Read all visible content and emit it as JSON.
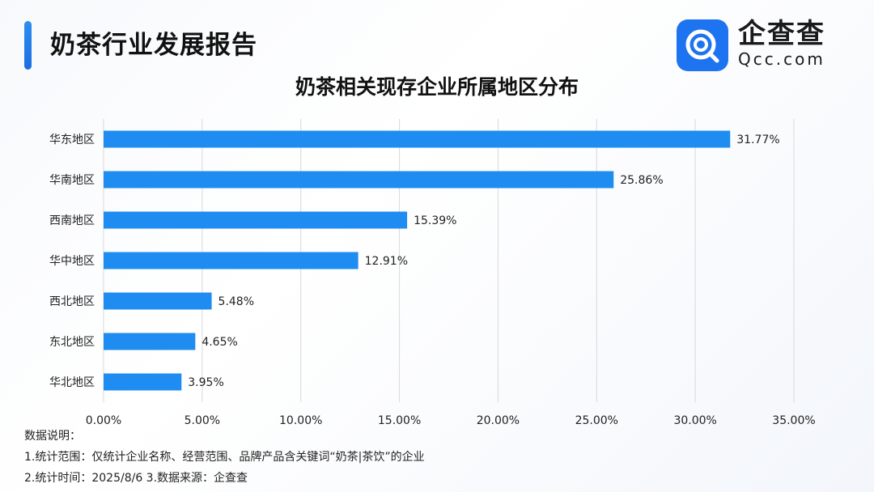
{
  "header": {
    "title": "奶茶行业发展报告",
    "brand_name": "企查查",
    "brand_sub": "Qcc.com",
    "brand_color": "#1e74f0"
  },
  "chart_data": {
    "type": "bar",
    "orientation": "horizontal",
    "title": "奶茶相关现存企业所属地区分布",
    "categories": [
      "华东地区",
      "华南地区",
      "西南地区",
      "华中地区",
      "西北地区",
      "东北地区",
      "华北地区"
    ],
    "values": [
      31.77,
      25.86,
      15.39,
      12.91,
      5.48,
      4.65,
      3.95
    ],
    "value_labels": [
      "31.77%",
      "25.86%",
      "15.39%",
      "12.91%",
      "5.48%",
      "4.65%",
      "3.95%"
    ],
    "xlim": [
      0,
      35
    ],
    "xticks": [
      0,
      5,
      10,
      15,
      20,
      25,
      30,
      35
    ],
    "xtick_labels": [
      "0.00%",
      "5.00%",
      "10.00%",
      "15.00%",
      "20.00%",
      "25.00%",
      "30.00%",
      "35.00%"
    ],
    "grid": true,
    "bar_color": "#1e8cf0"
  },
  "notes": {
    "heading": "数据说明：",
    "line1": "1.统计范围：仅统计企业名称、经营范围、品牌产品含关键词“奶茶|茶饮”的企业",
    "line2": "2.统计时间：2025/8/6  3.数据来源：企查查"
  }
}
